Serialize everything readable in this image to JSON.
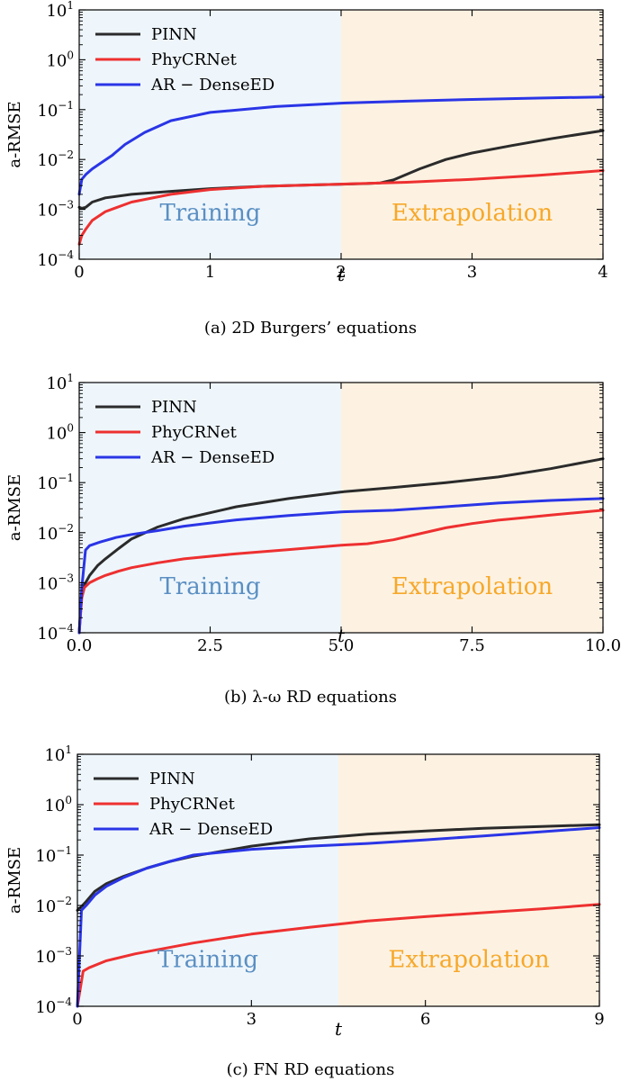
{
  "chart_data": [
    {
      "type": "line",
      "caption": "(a) 2D Burgers’ equations",
      "xlabel": "t",
      "ylabel": "a-RMSE",
      "xlim": [
        0,
        4
      ],
      "ylim": [
        0.0001,
        10
      ],
      "yscale": "log",
      "xticks": [
        0,
        1,
        2,
        3,
        4
      ],
      "xtick_labels": [
        "0",
        "1",
        "2",
        "3",
        "4"
      ],
      "yticks": [
        0.0001,
        0.001,
        0.01,
        0.1,
        1,
        10
      ],
      "ytick_labels": [
        [
          "10",
          "−4"
        ],
        [
          "10",
          "−3"
        ],
        [
          "10",
          "−2"
        ],
        [
          "10",
          "−1"
        ],
        [
          "10",
          "0"
        ],
        [
          "10",
          "1"
        ]
      ],
      "grid": false,
      "legend": "top-left",
      "regions": [
        {
          "label": "Training",
          "x": [
            0,
            2
          ],
          "color": "#eef6fc",
          "text_color": "#5b8fc2"
        },
        {
          "label": "Extrapolation",
          "x": [
            2,
            4
          ],
          "color": "#fdf2e2",
          "text_color": "#f6a82a"
        }
      ],
      "series": [
        {
          "name": "PINN",
          "color": "#2b2b2b",
          "x": [
            0,
            0.02,
            0.05,
            0.1,
            0.2,
            0.4,
            0.7,
            1.0,
            1.4,
            1.8,
            2.2,
            2.3,
            2.4,
            2.6,
            2.8,
            3.0,
            3.3,
            3.6,
            4.0
          ],
          "y": [
            0.0011,
            0.00105,
            0.0011,
            0.0014,
            0.0017,
            0.002,
            0.0023,
            0.0026,
            0.0029,
            0.0031,
            0.0033,
            0.0034,
            0.0039,
            0.0065,
            0.01,
            0.0135,
            0.019,
            0.026,
            0.038
          ]
        },
        {
          "name": "PhyCRNet",
          "color": "#ee3030",
          "x": [
            0,
            0.02,
            0.05,
            0.1,
            0.2,
            0.4,
            0.7,
            1.0,
            1.4,
            2.0,
            2.5,
            3.0,
            3.5,
            4.0
          ],
          "y": [
            0.0002,
            0.0003,
            0.0004,
            0.0006,
            0.0009,
            0.0014,
            0.002,
            0.0025,
            0.0029,
            0.0032,
            0.0035,
            0.004,
            0.0048,
            0.006
          ]
        },
        {
          "name": "AR − DenseED",
          "color": "#2a35e6",
          "x": [
            0,
            0.02,
            0.05,
            0.1,
            0.15,
            0.25,
            0.35,
            0.5,
            0.7,
            1.0,
            1.5,
            2.0,
            2.5,
            3.0,
            3.5,
            4.0
          ],
          "y": [
            0.002,
            0.004,
            0.005,
            0.0065,
            0.008,
            0.012,
            0.02,
            0.035,
            0.06,
            0.088,
            0.115,
            0.135,
            0.148,
            0.16,
            0.17,
            0.18
          ]
        }
      ]
    },
    {
      "type": "line",
      "caption": "(b) λ-ω RD equations",
      "xlabel": "t",
      "ylabel": "a-RMSE",
      "xlim": [
        0,
        10
      ],
      "ylim": [
        0.0001,
        10
      ],
      "yscale": "log",
      "xticks": [
        0,
        2.5,
        5,
        7.5,
        10
      ],
      "xtick_labels": [
        "0.0",
        "2.5",
        "5.0",
        "7.5",
        "10.0"
      ],
      "yticks": [
        0.0001,
        0.001,
        0.01,
        0.1,
        1,
        10
      ],
      "ytick_labels": [
        [
          "10",
          "−4"
        ],
        [
          "10",
          "−3"
        ],
        [
          "10",
          "−2"
        ],
        [
          "10",
          "−1"
        ],
        [
          "10",
          "0"
        ],
        [
          "10",
          "1"
        ]
      ],
      "grid": false,
      "legend": "top-left",
      "regions": [
        {
          "label": "Training",
          "x": [
            0,
            5
          ],
          "color": "#eef6fc",
          "text_color": "#5b8fc2"
        },
        {
          "label": "Extrapolation",
          "x": [
            5,
            10
          ],
          "color": "#fdf2e2",
          "text_color": "#f6a82a"
        }
      ],
      "series": [
        {
          "name": "PINN",
          "color": "#2b2b2b",
          "x": [
            0,
            0.05,
            0.1,
            0.2,
            0.35,
            0.5,
            0.75,
            1.0,
            1.5,
            2.0,
            3.0,
            4.0,
            5.0,
            6.0,
            7.0,
            8.0,
            9.0,
            10.0
          ],
          "y": [
            0.0001,
            0.0006,
            0.0009,
            0.0014,
            0.0022,
            0.003,
            0.0048,
            0.0075,
            0.013,
            0.019,
            0.033,
            0.048,
            0.065,
            0.08,
            0.1,
            0.13,
            0.19,
            0.3
          ]
        },
        {
          "name": "PhyCRNet",
          "color": "#ee3030",
          "x": [
            0,
            0.05,
            0.1,
            0.2,
            0.35,
            0.5,
            0.75,
            1.0,
            1.5,
            2.0,
            3.0,
            4.0,
            5.0,
            5.5,
            6.0,
            6.5,
            7.0,
            7.5,
            8.0,
            8.5,
            9.0,
            10.0
          ],
          "y": [
            0.0001,
            0.0005,
            0.0008,
            0.001,
            0.0012,
            0.0014,
            0.0017,
            0.002,
            0.0025,
            0.003,
            0.0038,
            0.0046,
            0.0056,
            0.006,
            0.0072,
            0.0095,
            0.0125,
            0.0152,
            0.0178,
            0.02,
            0.0225,
            0.028
          ]
        },
        {
          "name": "AR − DenseED",
          "color": "#2a35e6",
          "x": [
            0,
            0.05,
            0.12,
            0.2,
            0.4,
            0.7,
            1.0,
            1.5,
            2.0,
            3.0,
            4.0,
            5.0,
            6.0,
            7.0,
            8.0,
            9.0,
            10.0
          ],
          "y": [
            0.0001,
            0.0008,
            0.0045,
            0.0055,
            0.0065,
            0.008,
            0.0092,
            0.011,
            0.0135,
            0.018,
            0.022,
            0.026,
            0.028,
            0.033,
            0.039,
            0.044,
            0.048
          ]
        }
      ]
    },
    {
      "type": "line",
      "caption": "(c) FN RD equations",
      "xlabel": "t",
      "ylabel": "a-RMSE",
      "xlim": [
        0,
        9
      ],
      "ylim": [
        0.0001,
        10
      ],
      "yscale": "log",
      "xticks": [
        0,
        3,
        6,
        9
      ],
      "xtick_labels": [
        "0",
        "3",
        "6",
        "9"
      ],
      "yticks": [
        0.0001,
        0.001,
        0.01,
        0.1,
        1,
        10
      ],
      "ytick_labels": [
        [
          "10",
          "−4"
        ],
        [
          "10",
          "−3"
        ],
        [
          "10",
          "−2"
        ],
        [
          "10",
          "−1"
        ],
        [
          "10",
          "0"
        ],
        [
          "10",
          "1"
        ]
      ],
      "grid": false,
      "legend": "top-left",
      "regions": [
        {
          "label": "Training",
          "x": [
            0,
            4.5
          ],
          "color": "#eef6fc",
          "text_color": "#5b8fc2"
        },
        {
          "label": "Extrapolation",
          "x": [
            4.5,
            9
          ],
          "color": "#fdf2e2",
          "text_color": "#f6a82a"
        }
      ],
      "series": [
        {
          "name": "PINN",
          "color": "#2b2b2b",
          "x": [
            0,
            0.05,
            0.15,
            0.3,
            0.5,
            0.8,
            1.2,
            1.6,
            2.0,
            3.0,
            4.0,
            5.0,
            6.0,
            7.0,
            8.0,
            9.0
          ],
          "y": [
            0.008,
            0.009,
            0.012,
            0.019,
            0.027,
            0.038,
            0.055,
            0.075,
            0.095,
            0.15,
            0.21,
            0.26,
            0.3,
            0.34,
            0.37,
            0.4
          ]
        },
        {
          "name": "PhyCRNet",
          "color": "#ee3030",
          "x": [
            0,
            0.1,
            0.2,
            0.5,
            1.0,
            2.0,
            3.0,
            4.0,
            5.0,
            6.0,
            7.0,
            8.0,
            9.0
          ],
          "y": [
            0.0001,
            0.0005,
            0.00058,
            0.0008,
            0.0011,
            0.0018,
            0.0027,
            0.0037,
            0.0049,
            0.006,
            0.0072,
            0.0086,
            0.0105
          ]
        },
        {
          "name": "AR − DenseED",
          "color": "#2a35e6",
          "x": [
            0,
            0.07,
            0.15,
            0.3,
            0.5,
            0.8,
            1.2,
            1.6,
            2.0,
            3.0,
            4.0,
            5.0,
            6.0,
            7.0,
            8.0,
            9.0
          ],
          "y": [
            0.0001,
            0.008,
            0.01,
            0.016,
            0.024,
            0.036,
            0.055,
            0.075,
            0.1,
            0.13,
            0.15,
            0.17,
            0.2,
            0.24,
            0.29,
            0.35
          ]
        }
      ]
    }
  ]
}
